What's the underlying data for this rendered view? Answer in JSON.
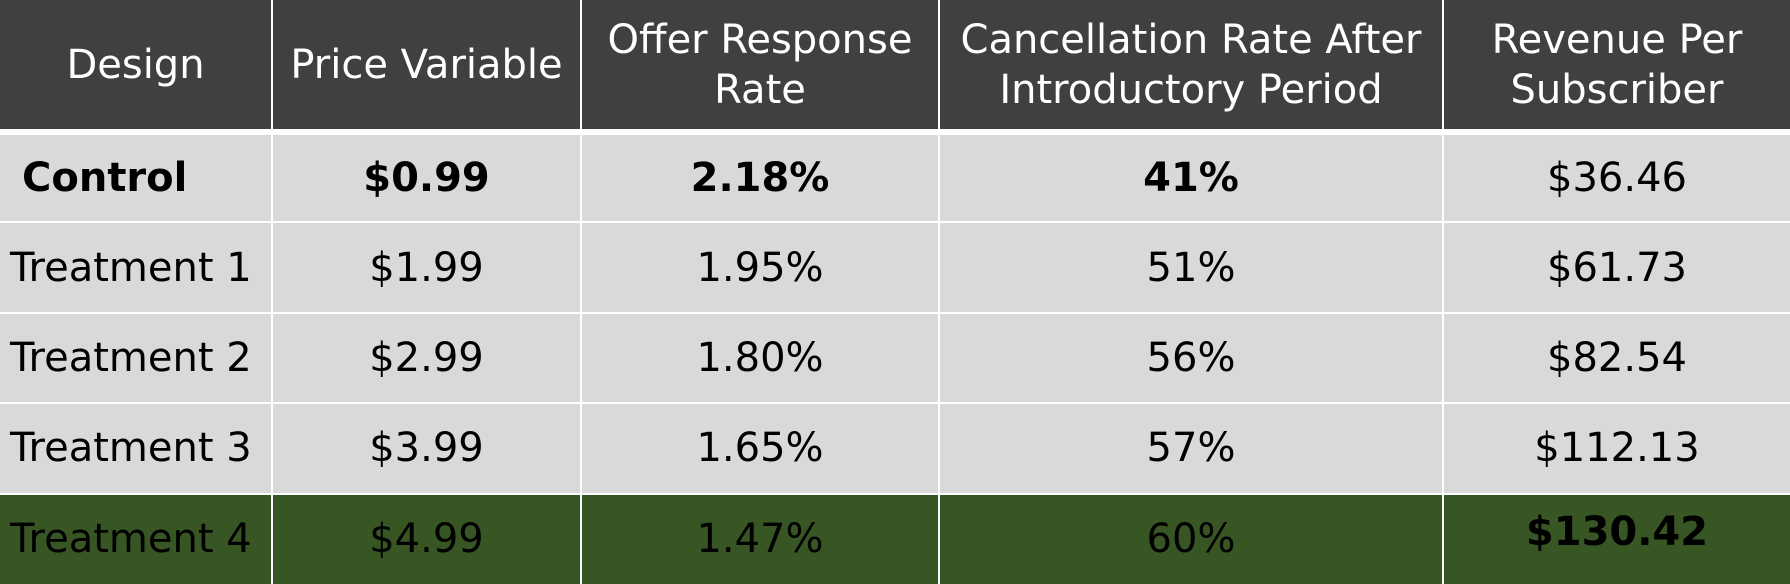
{
  "chart_data": {
    "type": "table",
    "title": "",
    "columns": [
      "Design",
      "Price Variable",
      "Offer Response Rate",
      "Cancellation Rate After Introductory Period",
      "Revenue Per Subscriber"
    ],
    "header": {
      "design": "Design",
      "price": "Price Variable",
      "response_line1": "Offer Response",
      "response_line2": "Rate",
      "cancel_line1": "Cancellation Rate After",
      "cancel_line2": "Introductory Period",
      "revenue_line1": "Revenue Per",
      "revenue_line2": "Subscriber"
    },
    "rows": [
      {
        "design": "Control",
        "price": "$0.99",
        "response": "2.18%",
        "cancel": "41%",
        "revenue": "$36.46"
      },
      {
        "design": "Treatment 1",
        "price": "$1.99",
        "response": "1.95%",
        "cancel": "51%",
        "revenue": "$61.73"
      },
      {
        "design": "Treatment 2",
        "price": "$2.99",
        "response": "1.80%",
        "cancel": "56%",
        "revenue": "$82.54"
      },
      {
        "design": "Treatment 3",
        "price": "$3.99",
        "response": "1.65%",
        "cancel": "57%",
        "revenue": "$112.13"
      },
      {
        "design": "Treatment 4",
        "price": "$4.99",
        "response": "1.47%",
        "cancel": "60%",
        "revenue": "$130.42"
      }
    ],
    "series": [
      {
        "name": "Price Variable",
        "values": [
          0.99,
          1.99,
          2.99,
          3.99,
          4.99
        ]
      },
      {
        "name": "Offer Response Rate (%)",
        "values": [
          2.18,
          1.95,
          1.8,
          1.65,
          1.47
        ]
      },
      {
        "name": "Cancellation Rate After Introductory Period (%)",
        "values": [
          41,
          51,
          56,
          57,
          60
        ]
      },
      {
        "name": "Revenue Per Subscriber",
        "values": [
          36.46,
          61.73,
          82.54,
          112.13,
          130.42
        ]
      }
    ],
    "colors": {
      "header_bg": "#404040",
      "row_bg": "#d9d9d9",
      "highlight_bg": "#375623"
    }
  }
}
